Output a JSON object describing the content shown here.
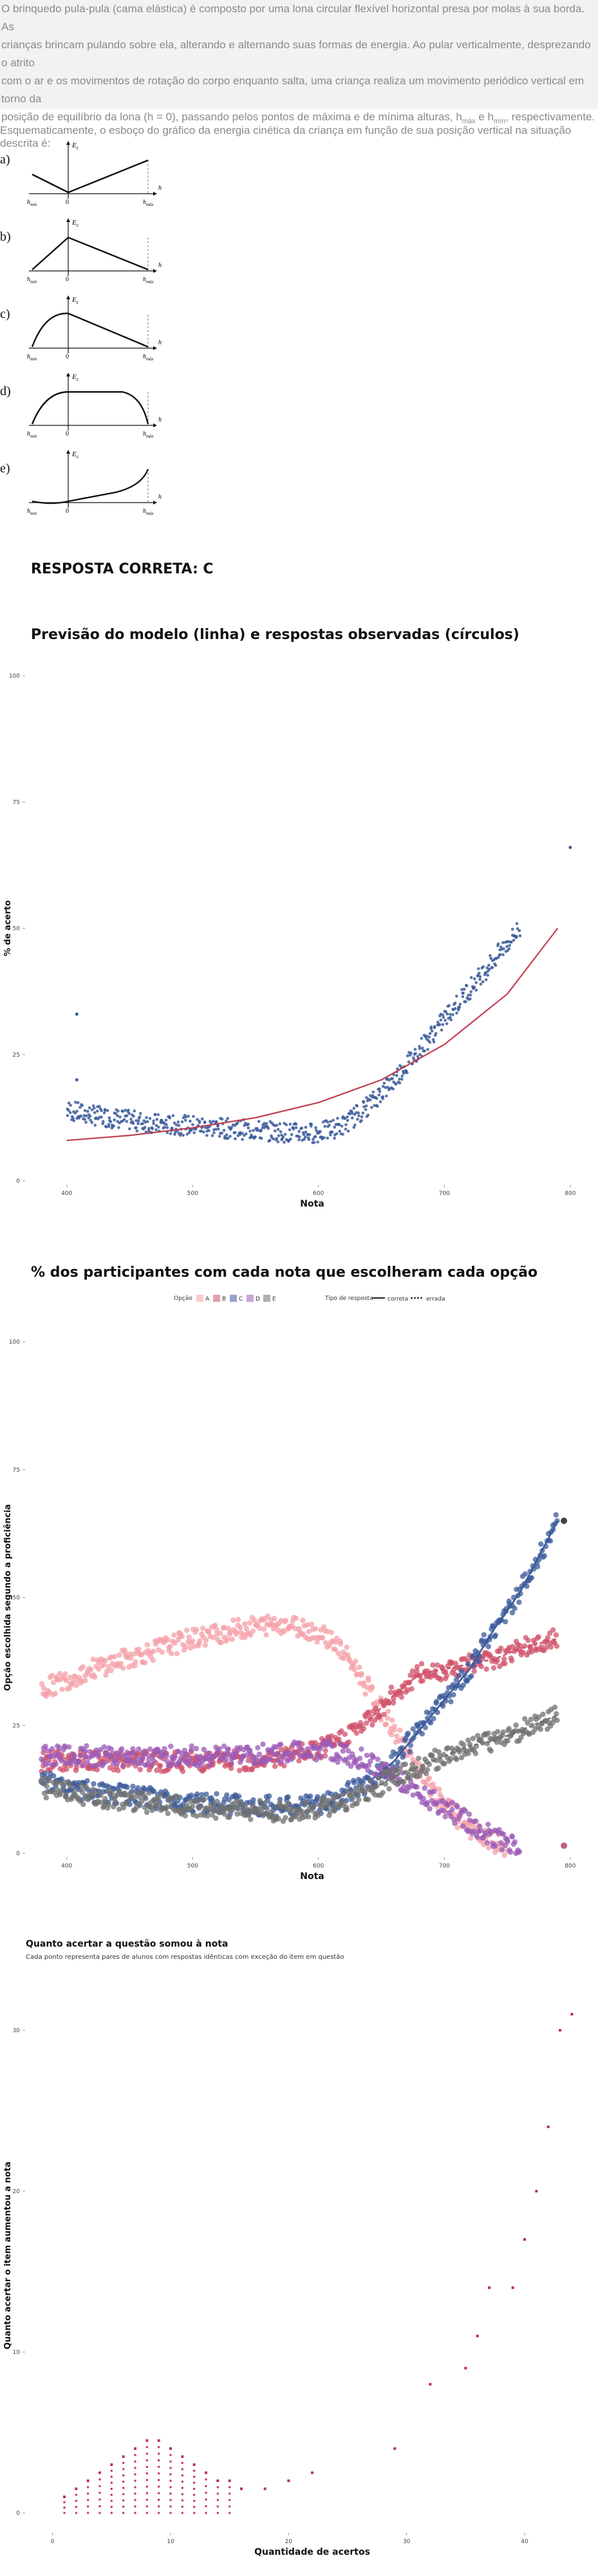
{
  "statement": {
    "lines": [
      "O brinquedo pula-pula (cama elástica) é composto por uma lona circular flexível horizontal presa por molas à sua borda. As",
      "crianças brincam pulando sobre ela, alterando e alternando suas formas de energia. Ao pular verticalmente, desprezando o atrito",
      "com o ar e os movimentos de rotação do corpo enquanto salta, uma criança realiza um movimento periódico vertical em torno da"
    ],
    "last_line_prefix": "posição de equilíbrio da lona (h = 0), passando pelos pontos de máxima e de mínima alturas, h",
    "sub_max": "máx",
    "conj": " e h",
    "sub_min": "mín",
    "last_line_suffix": ", respectivamente."
  },
  "question": "Esquematicamente, o esboço do gráfico da energia cinética da criança em função de sua posição vertical na situação descrita é:",
  "options": [
    {
      "letter": "a)"
    },
    {
      "letter": "b)"
    },
    {
      "letter": "c)"
    },
    {
      "letter": "d)"
    },
    {
      "letter": "e)"
    }
  ],
  "option_labels": {
    "ec": "E",
    "ec_sub": "c",
    "axis_h": "h",
    "zero": "0",
    "hmin": "h",
    "hmin_sub": "min",
    "hmax": "h",
    "hmax_sub": "máx"
  },
  "answer": "RESPOSTA CORRETA: C",
  "chart_data": [
    {
      "type": "scatter",
      "title": "Previsão do modelo (linha) e respostas observadas (círculos)",
      "xlabel": "Nota",
      "ylabel": "% de acerto",
      "xlim": [
        370,
        820
      ],
      "ylim": [
        0,
        100
      ],
      "xticks": [
        400,
        500,
        600,
        700,
        800
      ],
      "yticks": [
        0,
        25,
        50,
        75,
        100
      ],
      "grid": false,
      "series": [
        {
          "color": "#3b5a9a",
          "values": [
            [
              400,
              14
            ],
            [
              420,
              13
            ],
            [
              450,
              12
            ],
            [
              480,
              11
            ],
            [
              500,
              11
            ],
            [
              520,
              10.5
            ],
            [
              550,
              10
            ],
            [
              580,
              9.5
            ],
            [
              600,
              9.5
            ],
            [
              620,
              11
            ],
            [
              640,
              15
            ],
            [
              660,
              20
            ],
            [
              680,
              26
            ],
            [
              700,
              32
            ],
            [
              720,
              38
            ],
            [
              740,
              44
            ],
            [
              760,
              50
            ],
            [
              408,
              33
            ],
            [
              408,
              20
            ],
            [
              800,
              66
            ]
          ]
        },
        {
          "color": "#c04050",
          "values": [
            [
              400,
              8
            ],
            [
              450,
              9
            ],
            [
              500,
              10.5
            ],
            [
              550,
              12.5
            ],
            [
              600,
              15.5
            ],
            [
              650,
              20
            ],
            [
              700,
              27
            ],
            [
              750,
              37
            ],
            [
              790,
              50
            ]
          ]
        }
      ]
    },
    {
      "type": "scatter",
      "title": "% dos participantes com cada nota que escolheram cada opção",
      "xlabel": "Nota",
      "ylabel": "Opção escolhida segundo a proficiência",
      "xlim": [
        370,
        820
      ],
      "ylim": [
        0,
        100
      ],
      "xticks": [
        400,
        500,
        600,
        700,
        800
      ],
      "yticks": [
        0,
        25,
        50,
        75,
        100
      ],
      "legend": {
        "position": "top",
        "option_title": "Opção",
        "options": [
          "A",
          "B",
          "C",
          "D",
          "E"
        ],
        "type_title": "Tipo de resposta",
        "types": [
          "correta",
          "errada"
        ]
      },
      "series": [
        {
          "name": "A",
          "color": "#f4a0a8",
          "values": [
            [
              380,
              32
            ],
            [
              420,
              36
            ],
            [
              460,
              39
            ],
            [
              500,
              42
            ],
            [
              540,
              44
            ],
            [
              570,
              45
            ],
            [
              590,
              44
            ],
            [
              610,
              42
            ],
            [
              630,
              36
            ],
            [
              650,
              28
            ],
            [
              670,
              20
            ],
            [
              690,
              12
            ],
            [
              710,
              7
            ],
            [
              730,
              3
            ],
            [
              750,
              1
            ]
          ]
        },
        {
          "name": "B",
          "color": "#d0506a",
          "values": [
            [
              380,
              18
            ],
            [
              420,
              18
            ],
            [
              460,
              18
            ],
            [
              500,
              18
            ],
            [
              540,
              18
            ],
            [
              580,
              19
            ],
            [
              610,
              21
            ],
            [
              640,
              26
            ],
            [
              660,
              31
            ],
            [
              680,
              35
            ],
            [
              700,
              36
            ],
            [
              720,
              37
            ],
            [
              740,
              38
            ],
            [
              760,
              40
            ],
            [
              790,
              42
            ]
          ]
        },
        {
          "name": "C",
          "color": "#3b5a9a",
          "values": [
            [
              380,
              14
            ],
            [
              420,
              12
            ],
            [
              460,
              11
            ],
            [
              500,
              10
            ],
            [
              540,
              9.5
            ],
            [
              580,
              9
            ],
            [
              610,
              10
            ],
            [
              640,
              14
            ],
            [
              660,
              18
            ],
            [
              680,
              24
            ],
            [
              700,
              30
            ],
            [
              720,
              36
            ],
            [
              740,
              44
            ],
            [
              760,
              51
            ],
            [
              790,
              65
            ]
          ]
        },
        {
          "name": "D",
          "color": "#9b59b6",
          "values": [
            [
              380,
              19
            ],
            [
              420,
              19
            ],
            [
              460,
              19
            ],
            [
              500,
              19
            ],
            [
              540,
              19
            ],
            [
              580,
              20
            ],
            [
              610,
              20
            ],
            [
              640,
              18
            ],
            [
              660,
              15
            ],
            [
              680,
              12
            ],
            [
              700,
              9
            ],
            [
              720,
              6
            ],
            [
              740,
              3
            ],
            [
              760,
              1
            ]
          ]
        },
        {
          "name": "E",
          "color": "#707070",
          "values": [
            [
              380,
              13
            ],
            [
              420,
              11
            ],
            [
              460,
              10
            ],
            [
              500,
              9
            ],
            [
              540,
              8.5
            ],
            [
              580,
              8
            ],
            [
              610,
              9
            ],
            [
              640,
              12
            ],
            [
              660,
              15
            ],
            [
              680,
              17
            ],
            [
              700,
              19
            ],
            [
              720,
              21
            ],
            [
              740,
              22
            ],
            [
              760,
              24
            ],
            [
              790,
              27
            ]
          ]
        }
      ]
    },
    {
      "type": "scatter",
      "title": "Quanto acertar a questão somou à nota",
      "subtitle": "Cada ponto representa pares de alunos com respostas idênticas com exceção do item em questão",
      "xlabel": "Quantidade de acertos",
      "ylabel": "Quanto acertar o item aumentou a nota",
      "xlim": [
        -2,
        46
      ],
      "ylim": [
        -1,
        33
      ],
      "xticks": [
        0,
        10,
        20,
        30,
        40
      ],
      "yticks": [
        0,
        10,
        20,
        30
      ],
      "series": [
        {
          "color": "#c03050",
          "values": [
            [
              1,
              1
            ],
            [
              2,
              1.5
            ],
            [
              3,
              2
            ],
            [
              4,
              2.5
            ],
            [
              5,
              3
            ],
            [
              6,
              3.5
            ],
            [
              7,
              4
            ],
            [
              8,
              4.5
            ],
            [
              9,
              4.5
            ],
            [
              10,
              4
            ],
            [
              11,
              3.5
            ],
            [
              12,
              3
            ],
            [
              13,
              2.5
            ],
            [
              14,
              2
            ],
            [
              15,
              2
            ],
            [
              16,
              1.5
            ],
            [
              18,
              1.5
            ],
            [
              20,
              2
            ],
            [
              22,
              2.5
            ],
            [
              29,
              4
            ],
            [
              32,
              8
            ],
            [
              35,
              9
            ],
            [
              36,
              11
            ],
            [
              37,
              14
            ],
            [
              39,
              14
            ],
            [
              40,
              17
            ],
            [
              41,
              20
            ],
            [
              42,
              24
            ],
            [
              43,
              30
            ],
            [
              44,
              31
            ]
          ]
        }
      ]
    }
  ]
}
